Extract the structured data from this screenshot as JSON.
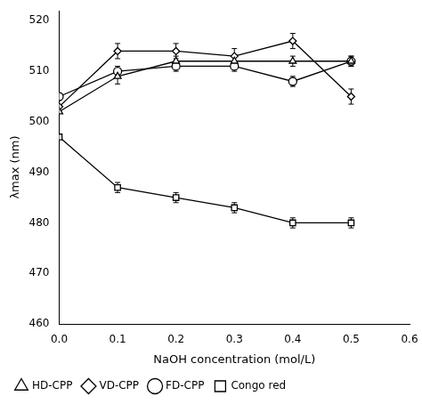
{
  "chart_data": {
    "type": "line",
    "x": [
      0,
      0.1,
      0.2,
      0.3,
      0.4,
      0.5
    ],
    "series": [
      {
        "name": "HD-CPP",
        "color": "#000000",
        "marker": "triangle",
        "values": [
          502,
          509,
          512,
          512,
          512,
          512
        ],
        "error": [
          0,
          1.5,
          1.0,
          1.0,
          1.0,
          1.0
        ]
      },
      {
        "name": "VD-CPP",
        "color": "#000000",
        "marker": "diamond",
        "values": [
          503,
          514,
          514,
          513,
          516,
          505
        ],
        "error": [
          0,
          1.5,
          1.5,
          1.5,
          1.5,
          1.5
        ]
      },
      {
        "name": "FD-CPP",
        "color": "#000000",
        "marker": "circle",
        "values": [
          505,
          510,
          511,
          511,
          508,
          512
        ],
        "error": [
          0,
          1.0,
          1.0,
          1.0,
          1.0,
          1.0
        ]
      },
      {
        "name": "Congo red",
        "color": "#000000",
        "marker": "square",
        "values": [
          497,
          487,
          485,
          483,
          480,
          480
        ],
        "error": [
          0,
          1.0,
          1.0,
          1.0,
          1.0,
          1.0
        ]
      }
    ],
    "xlabel": "NaOH concentration (mol/L)",
    "ylabel": "λmax (nm)",
    "xlim": [
      0,
      0.6
    ],
    "ylim": [
      460,
      522
    ],
    "xticks": [
      {
        "value": 0,
        "label": "0.0"
      },
      0.1,
      0.2,
      0.3,
      0.4,
      0.5,
      0.6
    ],
    "yticks": [
      460,
      470,
      480,
      490,
      500,
      510,
      520
    ],
    "grid": false,
    "legend": "lower left"
  }
}
